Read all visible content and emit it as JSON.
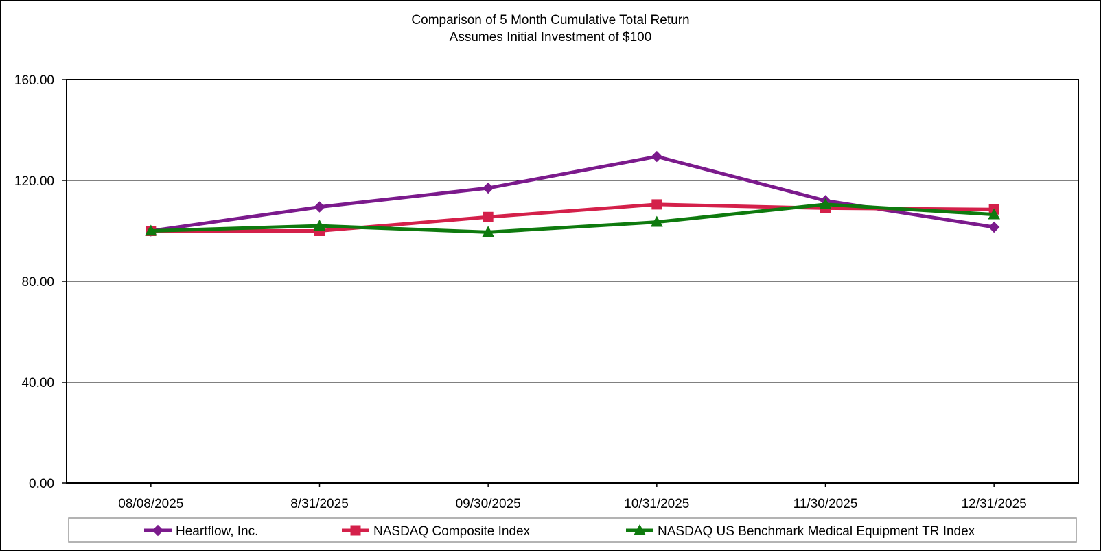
{
  "chart_data": {
    "type": "line",
    "title": "Comparison of 5 Month Cumulative Total Return",
    "subtitle": "Assumes Initial Investment of $100",
    "categories": [
      "08/08/2025",
      "8/31/2025",
      "09/30/2025",
      "10/31/2025",
      "11/30/2025",
      "12/31/2025"
    ],
    "ylim": [
      0,
      160
    ],
    "yticks": [
      0,
      40,
      80,
      120,
      160
    ],
    "ytick_labels": [
      "0.00",
      "40.00",
      "80.00",
      "120.00",
      "160.00"
    ],
    "grid": "horizontal",
    "legend_position": "bottom",
    "series": [
      {
        "name": "Heartflow, Inc.",
        "marker": "diamond",
        "color": "#7B1A8C",
        "values": [
          100.0,
          109.5,
          117.0,
          129.5,
          112.0,
          101.5
        ]
      },
      {
        "name": "NASDAQ Composite Index",
        "marker": "square",
        "color": "#D4204A",
        "values": [
          100.0,
          100.0,
          105.5,
          110.5,
          109.0,
          108.5
        ]
      },
      {
        "name": "NASDAQ US Benchmark Medical Equipment TR Index",
        "marker": "triangle",
        "color": "#0E7A0E",
        "values": [
          100.0,
          102.0,
          99.5,
          103.5,
          110.5,
          106.5
        ]
      }
    ]
  }
}
